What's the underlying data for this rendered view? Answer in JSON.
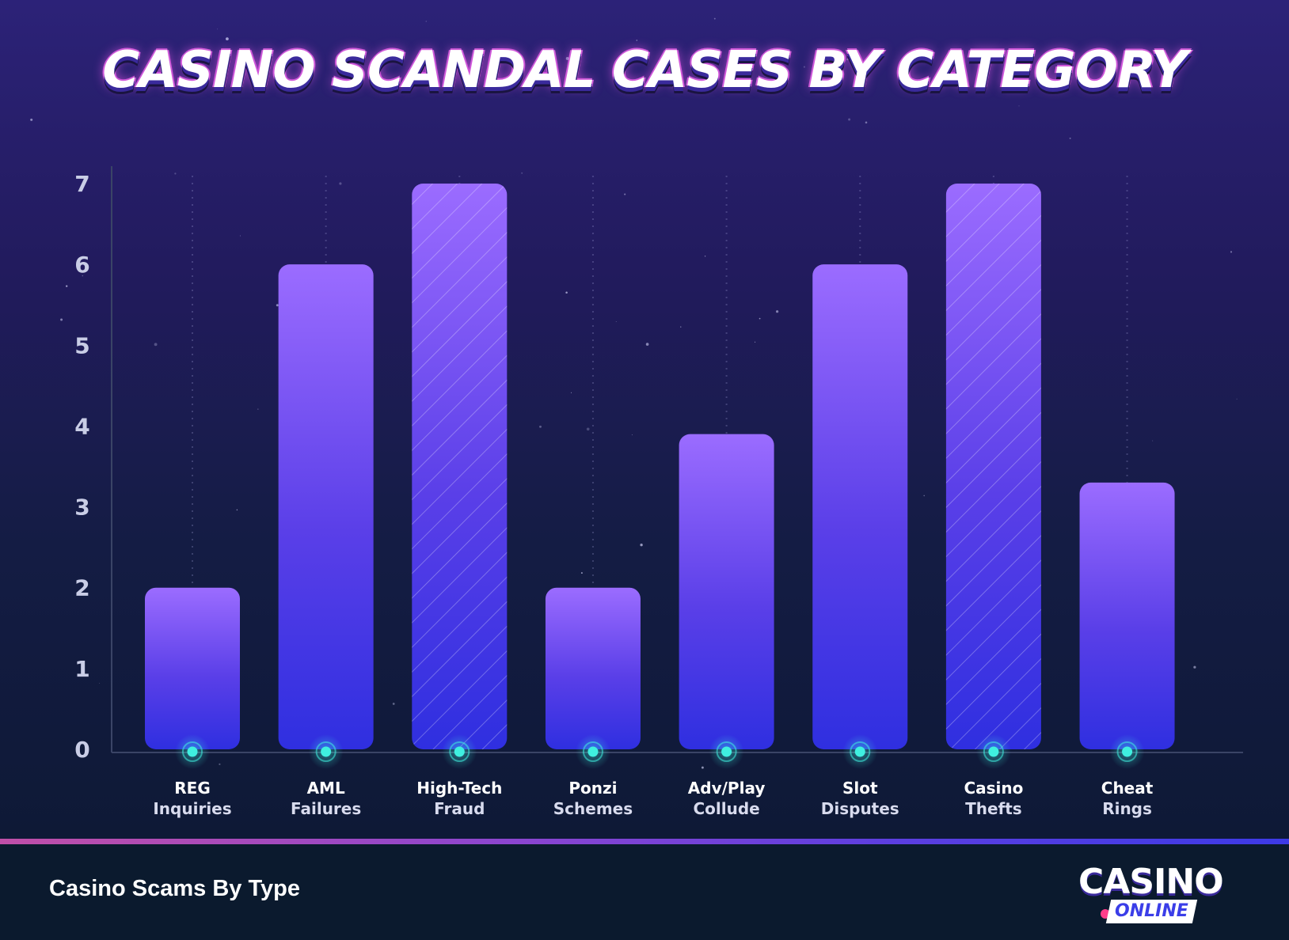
{
  "title": "CASINO SCANDAL CASES BY CATEGORY",
  "footer": {
    "caption": "Casino Scams By Type",
    "logo_main": "CASINO",
    "logo_sub": "ONLINE"
  },
  "colors": {
    "bar_top": "#9b6cff",
    "bar_bottom": "#2f2fe0",
    "marker": "#3ff0e0",
    "axis": "#3a4466",
    "accent_line_start": "#c04fa8",
    "accent_line_end": "#3d3ae6"
  },
  "chart_data": {
    "type": "bar",
    "title": "CASINO SCANDAL CASES BY CATEGORY",
    "xlabel": "",
    "ylabel": "",
    "categories": [
      [
        "REG",
        "Inquiries"
      ],
      [
        "AML",
        "Failures"
      ],
      [
        "High-Tech",
        "Fraud"
      ],
      [
        "Ponzi",
        "Schemes"
      ],
      [
        "Adv/Play",
        "Collude"
      ],
      [
        "Slot",
        "Disputes"
      ],
      [
        "Casino",
        "Thefts"
      ],
      [
        "Cheat",
        "Rings"
      ]
    ],
    "values": [
      2,
      6,
      7,
      2,
      3.9,
      6,
      7,
      3.3
    ],
    "hatched": [
      false,
      false,
      true,
      false,
      false,
      false,
      true,
      false
    ],
    "ylim": [
      0,
      7
    ],
    "yticks": [
      "0",
      "1",
      "2",
      "3",
      "4",
      "5",
      "6",
      "7"
    ],
    "grid": false,
    "legend": "none"
  }
}
